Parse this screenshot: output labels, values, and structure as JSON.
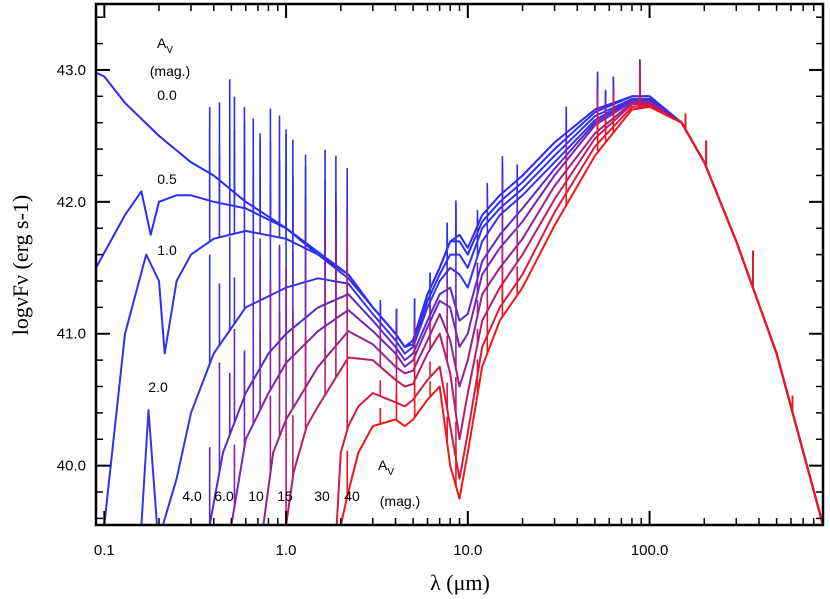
{
  "chart_data": {
    "type": "line",
    "xscale": "log",
    "xlim": [
      0.09,
      900
    ],
    "ylim": [
      39.55,
      43.5
    ],
    "xlabel": "λ (μm)",
    "ylabel": "logνFν (erg s-1)",
    "x_ticks": [
      {
        "value": 0.1,
        "label": "0.1"
      },
      {
        "value": 1.0,
        "label": "1.0"
      },
      {
        "value": 10.0,
        "label": "10.0"
      },
      {
        "value": 100.0,
        "label": "100.0"
      }
    ],
    "y_ticks": [
      {
        "value": 40.0,
        "label": "40.0"
      },
      {
        "value": 41.0,
        "label": "41.0"
      },
      {
        "value": 42.0,
        "label": "42.0"
      },
      {
        "value": 43.0,
        "label": "43.0"
      }
    ],
    "av_legend": {
      "line1": "A",
      "sub": "V",
      "line2": "(mag.)"
    },
    "series": [
      {
        "name": "0.0",
        "av": 0.0,
        "color": "#2a2aff",
        "x": [
          0.09,
          0.1,
          0.13,
          0.2,
          0.3,
          0.4,
          0.6,
          1.0,
          1.5,
          2.2,
          3,
          4,
          4.5,
          5,
          6,
          7,
          8,
          9,
          10,
          12,
          15,
          20,
          30,
          50,
          80,
          100,
          150,
          200,
          300,
          500,
          900
        ],
        "y": [
          42.98,
          42.95,
          42.75,
          42.5,
          42.3,
          42.2,
          42.0,
          41.8,
          41.6,
          41.45,
          41.2,
          41.0,
          40.9,
          40.95,
          41.3,
          41.5,
          41.7,
          41.75,
          41.65,
          41.9,
          42.05,
          42.2,
          42.45,
          42.7,
          42.8,
          42.8,
          42.6,
          42.3,
          41.7,
          40.85,
          39.55
        ]
      },
      {
        "name": "0.5",
        "av": 0.5,
        "color": "#2c2cf8",
        "x": [
          0.09,
          0.13,
          0.16,
          0.18,
          0.2,
          0.25,
          0.3,
          0.4,
          0.6,
          1.0,
          1.5,
          2.2,
          3,
          4,
          4.5,
          5,
          6,
          7,
          8,
          9,
          10,
          12,
          15,
          20,
          30,
          50,
          80,
          100,
          150,
          200,
          300,
          500,
          900
        ],
        "y": [
          41.5,
          41.9,
          42.08,
          41.75,
          42.0,
          42.05,
          42.05,
          42.0,
          41.95,
          41.8,
          41.62,
          41.45,
          41.2,
          41.0,
          40.9,
          40.95,
          41.3,
          41.5,
          41.7,
          41.7,
          41.6,
          41.85,
          42.0,
          42.15,
          42.4,
          42.68,
          42.8,
          42.8,
          42.6,
          42.3,
          41.7,
          40.85,
          39.55
        ]
      },
      {
        "name": "1.0",
        "av": 1.0,
        "color": "#3030f0",
        "x": [
          0.1,
          0.13,
          0.17,
          0.2,
          0.215,
          0.25,
          0.3,
          0.4,
          0.6,
          1.0,
          1.5,
          2.2,
          3,
          4,
          4.5,
          5,
          6,
          7,
          8,
          9,
          10,
          12,
          15,
          20,
          30,
          50,
          80,
          100,
          150,
          200,
          300,
          500,
          900
        ],
        "y": [
          39.55,
          41.0,
          41.6,
          41.4,
          40.85,
          41.4,
          41.6,
          41.72,
          41.78,
          41.72,
          41.6,
          41.42,
          41.2,
          41.0,
          40.9,
          40.92,
          41.25,
          41.45,
          41.6,
          41.6,
          41.5,
          41.8,
          41.95,
          42.1,
          42.35,
          42.65,
          42.78,
          42.78,
          42.6,
          42.3,
          41.7,
          40.85,
          39.55
        ]
      },
      {
        "name": "2.0",
        "av": 2.0,
        "color": "#3535e6",
        "x": [
          0.16,
          0.175,
          0.195,
          0.21,
          0.25,
          0.3,
          0.4,
          0.6,
          1.0,
          1.5,
          2.2,
          3,
          4,
          4.5,
          5,
          6,
          7,
          8,
          9,
          10,
          12,
          15,
          20,
          30,
          50,
          80,
          100,
          150,
          200,
          300,
          500,
          900
        ],
        "y": [
          39.55,
          40.42,
          39.55,
          39.55,
          39.9,
          40.4,
          40.85,
          41.2,
          41.35,
          41.42,
          41.38,
          41.15,
          40.95,
          40.85,
          40.9,
          41.2,
          41.4,
          41.5,
          41.45,
          41.35,
          41.7,
          41.9,
          42.05,
          42.3,
          42.62,
          42.78,
          42.78,
          42.6,
          42.3,
          41.7,
          40.85,
          39.55
        ]
      },
      {
        "name": "4.0",
        "av": 4.0,
        "color": "#5a28d2",
        "x": [
          0.38,
          0.45,
          0.6,
          0.8,
          1.0,
          1.5,
          2.2,
          3,
          4,
          4.5,
          5,
          6,
          7,
          8,
          9,
          10,
          12,
          15,
          20,
          30,
          50,
          80,
          100,
          150,
          200,
          300,
          500,
          900
        ],
        "y": [
          39.55,
          40.1,
          40.55,
          40.85,
          41.0,
          41.2,
          41.3,
          41.1,
          40.9,
          40.8,
          40.85,
          41.1,
          41.3,
          41.35,
          41.1,
          41.15,
          41.55,
          41.75,
          41.95,
          42.25,
          42.6,
          42.77,
          42.77,
          42.6,
          42.3,
          41.7,
          40.85,
          39.55
        ]
      },
      {
        "name": "6.0",
        "av": 6.0,
        "color": "#7a24b4",
        "x": [
          0.5,
          0.6,
          0.8,
          1.0,
          1.5,
          2.2,
          3,
          4,
          4.5,
          5,
          6,
          7,
          8,
          9,
          10,
          12,
          15,
          20,
          30,
          50,
          80,
          100,
          150,
          200,
          300,
          500,
          900
        ],
        "y": [
          39.55,
          40.2,
          40.55,
          40.78,
          41.02,
          41.18,
          41.02,
          40.85,
          40.75,
          40.8,
          41.05,
          41.25,
          41.2,
          40.9,
          41.0,
          41.45,
          41.65,
          41.85,
          42.2,
          42.58,
          42.76,
          42.76,
          42.6,
          42.3,
          41.7,
          40.85,
          39.55
        ]
      },
      {
        "name": "10",
        "av": 10.0,
        "color": "#9a2090",
        "x": [
          0.75,
          0.85,
          1.0,
          1.5,
          2.2,
          3,
          4,
          4.5,
          5,
          6,
          7,
          8,
          9,
          10,
          12,
          15,
          20,
          30,
          50,
          80,
          100,
          150,
          200,
          300,
          500,
          900
        ],
        "y": [
          39.55,
          40.1,
          40.35,
          40.75,
          41.02,
          40.92,
          40.75,
          40.7,
          40.72,
          40.95,
          41.15,
          40.95,
          40.6,
          40.8,
          41.3,
          41.5,
          41.72,
          42.12,
          42.52,
          42.75,
          42.75,
          42.6,
          42.3,
          41.7,
          40.85,
          39.55
        ]
      },
      {
        "name": "15",
        "av": 15.0,
        "color": "#b81c6a",
        "x": [
          1.0,
          1.1,
          1.3,
          1.5,
          2.2,
          3,
          4,
          4.5,
          5,
          6,
          7,
          8,
          9,
          10,
          12,
          15,
          20,
          30,
          50,
          80,
          100,
          150,
          200,
          300,
          500,
          900
        ],
        "y": [
          39.55,
          39.95,
          40.3,
          40.45,
          40.82,
          40.8,
          40.65,
          40.6,
          40.62,
          40.85,
          41.0,
          40.7,
          40.2,
          40.55,
          41.1,
          41.35,
          41.6,
          42.02,
          42.48,
          42.74,
          42.74,
          42.6,
          42.3,
          41.7,
          40.85,
          39.55
        ]
      },
      {
        "name": "30",
        "av": 30.0,
        "color": "#d81a40",
        "x": [
          1.9,
          2.0,
          2.2,
          2.5,
          3,
          4,
          4.5,
          5,
          6,
          7,
          8,
          9,
          10,
          12,
          15,
          20,
          30,
          50,
          80,
          100,
          150,
          200,
          300,
          500,
          900
        ],
        "y": [
          39.55,
          40.1,
          40.3,
          40.45,
          40.55,
          40.48,
          40.45,
          40.5,
          40.65,
          40.75,
          40.3,
          39.9,
          40.25,
          40.9,
          41.2,
          41.45,
          41.92,
          42.42,
          42.72,
          42.73,
          42.6,
          42.3,
          41.7,
          40.85,
          39.55
        ]
      },
      {
        "name": "40",
        "av": 40.0,
        "color": "#ee1818",
        "x": [
          2.0,
          2.2,
          2.5,
          3,
          4,
          4.5,
          5,
          6,
          7,
          8,
          9,
          10,
          12,
          15,
          20,
          30,
          50,
          80,
          100,
          150,
          200,
          300,
          500,
          900
        ],
        "y": [
          39.55,
          39.8,
          40.1,
          40.3,
          40.35,
          40.3,
          40.35,
          40.5,
          40.6,
          40.0,
          39.75,
          40.1,
          40.75,
          41.1,
          41.35,
          41.82,
          42.35,
          42.7,
          42.72,
          42.6,
          42.3,
          41.7,
          40.85,
          39.55
        ]
      }
    ]
  }
}
